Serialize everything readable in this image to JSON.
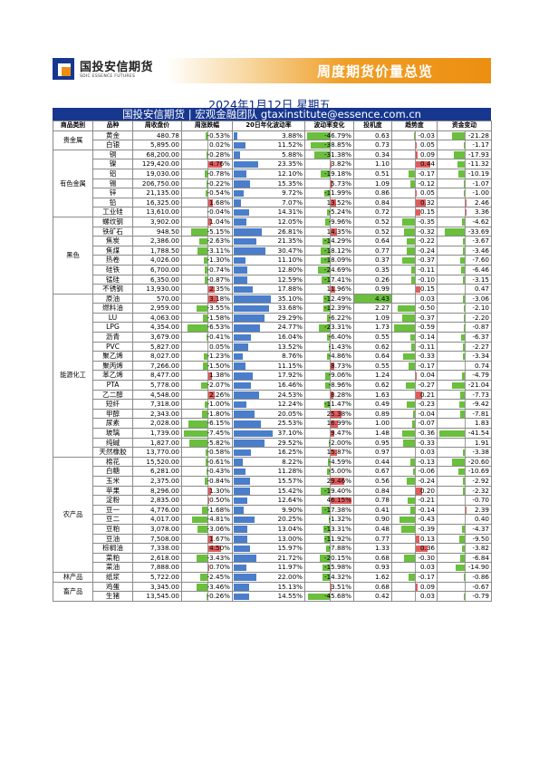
{
  "logo": {
    "cn": "国投安信期货",
    "en": "SDIC ESSENCE FUTURES"
  },
  "header": {
    "title": "周度期货价量总览",
    "date": "2024年1月12日 星期五",
    "banner": "国投安信期货 | 宏观金融团队 gtaxinstitute@essence.com.cn"
  },
  "colors": {
    "navy": "#17378f",
    "orange": "#ec8f10",
    "pos": "#e05d5d",
    "neg": "#6abf3d",
    "vol": "#4a7ecb"
  },
  "columns": [
    "商品类别",
    "品种",
    "周收盘价",
    "周涨跌幅",
    "20日年化波动率",
    "波动率变化",
    "投机度",
    "趋势度",
    "资金变动"
  ],
  "groups": [
    {
      "category": "贵金属",
      "rows": [
        [
          "黄金",
          "480.78",
          "-0.53%",
          "3.88%",
          "-46.79%",
          "0.63",
          "-0.03",
          "-21.28"
        ],
        [
          "白银",
          "5,895.00",
          "0.02%",
          "11.52%",
          "-38.85%",
          "0.73",
          "0.05",
          "-1.17"
        ]
      ]
    },
    {
      "category": "有色金属",
      "rows": [
        [
          "铜",
          "68,200.00",
          "-0.28%",
          "5.88%",
          "-31.38%",
          "0.34",
          "0.09",
          "-17.93"
        ],
        [
          "镍",
          "129,420.00",
          "4.76%",
          "23.35%",
          "3.82%",
          "1.10",
          "0.44",
          "-11.32"
        ],
        [
          "铝",
          "19,030.00",
          "-0.78%",
          "12.10%",
          "-19.18%",
          "0.51",
          "-0.17",
          "-10.19"
        ],
        [
          "锡",
          "206,750.00",
          "-0.22%",
          "15.35%",
          "5.73%",
          "1.09",
          "-0.12",
          "-1.07"
        ],
        [
          "锌",
          "21,135.00",
          "-0.54%",
          "9.72%",
          "-11.99%",
          "0.86",
          "0.05",
          "-1.00"
        ],
        [
          "铅",
          "16,325.00",
          "1.68%",
          "7.07%",
          "13.52%",
          "0.84",
          "0.32",
          "2.46"
        ],
        [
          "工业硅",
          "13,610.00",
          "-0.04%",
          "14.31%",
          "-5.24%",
          "0.72",
          "0.15",
          "3.36"
        ]
      ]
    },
    {
      "category": "黑色",
      "rows": [
        [
          "螺纹钢",
          "3,902.00",
          "1.04%",
          "12.05%",
          "-9.96%",
          "0.52",
          "-0.35",
          "-4.62"
        ],
        [
          "铁矿石",
          "948.50",
          "-5.15%",
          "26.81%",
          "14.35%",
          "0.52",
          "-0.32",
          "-33.69"
        ],
        [
          "焦炭",
          "2,386.00",
          "-2.63%",
          "21.35%",
          "-14.29%",
          "0.64",
          "-0.22",
          "-3.67"
        ],
        [
          "焦煤",
          "1,788.50",
          "-3.11%",
          "30.47%",
          "-18.12%",
          "0.77",
          "-0.24",
          "-3.46"
        ],
        [
          "热卷",
          "4,026.00",
          "-1.30%",
          "11.10%",
          "-18.09%",
          "0.37",
          "-0.37",
          "-7.60"
        ],
        [
          "硅铁",
          "6,700.00",
          "-0.74%",
          "12.80%",
          "-24.69%",
          "0.35",
          "-0.11",
          "-6.46"
        ],
        [
          "锰硅",
          "6,350.00",
          "-0.87%",
          "12.59%",
          "-17.41%",
          "0.26",
          "-0.10",
          "-3.15"
        ],
        [
          "不锈钢",
          "13,930.00",
          "2.35%",
          "17.88%",
          "11.96%",
          "0.99",
          "0.15",
          "0.47"
        ]
      ]
    },
    {
      "category": "能源化工",
      "rows": [
        [
          "原油",
          "570.00",
          "3.18%",
          "35.10%",
          "-12.49%",
          "4.43",
          "0.03",
          "-3.06"
        ],
        [
          "燃料油",
          "2,959.00",
          "-3.55%",
          "33.68%",
          "-12.39%",
          "2.27",
          "-0.50",
          "-2.10"
        ],
        [
          "LU",
          "4,063.00",
          "-1.58%",
          "29.29%",
          "-6.22%",
          "1.09",
          "-0.37",
          "-2.20"
        ],
        [
          "LPG",
          "4,354.00",
          "-6.53%",
          "24.77%",
          "-23.31%",
          "1.73",
          "-0.59",
          "-0.87"
        ],
        [
          "沥青",
          "3,679.00",
          "-0.41%",
          "16.04%",
          "-6.40%",
          "0.55",
          "-0.14",
          "-6.37"
        ],
        [
          "PVC",
          "5,827.00",
          "0.05%",
          "13.52%",
          "-1.43%",
          "0.62",
          "-0.11",
          "-2.27"
        ],
        [
          "聚乙烯",
          "8,027.00",
          "-1.23%",
          "8.76%",
          "-4.86%",
          "0.64",
          "-0.33",
          "-3.34"
        ],
        [
          "聚丙烯",
          "7,266.00",
          "-1.50%",
          "11.15%",
          "8.73%",
          "0.55",
          "-0.17",
          "0.74"
        ],
        [
          "苯乙烯",
          "8,477.00",
          "1.38%",
          "17.92%",
          "-9.06%",
          "1.24",
          "0.04",
          "-4.79"
        ],
        [
          "PTA",
          "5,778.00",
          "-2.07%",
          "16.46%",
          "-8.96%",
          "0.62",
          "-0.27",
          "-21.04"
        ],
        [
          "乙二醇",
          "4,548.00",
          "2.26%",
          "24.53%",
          "8.28%",
          "1.63",
          "0.21",
          "-7.73"
        ],
        [
          "短纤",
          "7,318.00",
          "-1.00%",
          "12.24%",
          "-11.47%",
          "0.49",
          "-0.23",
          "-9.42"
        ],
        [
          "甲醇",
          "2,343.00",
          "-1.80%",
          "20.05%",
          "25.38%",
          "0.89",
          "-0.04",
          "-7.81"
        ],
        [
          "尿素",
          "2,028.00",
          "-6.15%",
          "25.53%",
          "16.99%",
          "1.00",
          "-0.07",
          "1.83"
        ],
        [
          "玻璃",
          "1,739.00",
          "-7.45%",
          "37.10%",
          "9.47%",
          "1.48",
          "-0.36",
          "-41.54"
        ],
        [
          "纯碱",
          "1,827.00",
          "-5.82%",
          "29.52%",
          "-2.00%",
          "0.95",
          "-0.33",
          "1.91"
        ],
        [
          "天然橡胶",
          "13,770.00",
          "-0.58%",
          "16.25%",
          "15.87%",
          "0.97",
          "0.03",
          "-3.38"
        ]
      ]
    },
    {
      "category": "农产品",
      "rows": [
        [
          "棉花",
          "15,520.00",
          "-0.61%",
          "8.22%",
          "-4.59%",
          "0.44",
          "-0.13",
          "-20.60"
        ],
        [
          "白糖",
          "6,281.00",
          "-0.43%",
          "11.28%",
          "-5.00%",
          "0.67",
          "-0.06",
          "-10.69"
        ],
        [
          "玉米",
          "2,375.00",
          "-0.84%",
          "15.57%",
          "29.46%",
          "0.56",
          "-0.24",
          "-2.92"
        ],
        [
          "苹果",
          "8,296.00",
          "1.30%",
          "15.42%",
          "-19.40%",
          "0.84",
          "0.20",
          "-2.32"
        ],
        [
          "淀粉",
          "2,835.00",
          "0.50%",
          "12.64%",
          "46.15%",
          "0.78",
          "-0.21",
          "-0.70"
        ],
        [
          "豆一",
          "4,776.00",
          "-1.68%",
          "9.90%",
          "-17.38%",
          "0.41",
          "-0.14",
          "2.39"
        ],
        [
          "豆二",
          "4,017.00",
          "-4.81%",
          "20.25%",
          "-1.32%",
          "0.90",
          "-0.43",
          "0.40"
        ],
        [
          "豆粕",
          "3,078.00",
          "-3.06%",
          "13.04%",
          "-13.31%",
          "0.48",
          "-0.39",
          "-4.37"
        ],
        [
          "豆油",
          "7,508.00",
          "1.67%",
          "13.00%",
          "-11.92%",
          "0.77",
          "0.13",
          "-9.50"
        ],
        [
          "棕榈油",
          "7,338.00",
          "4.50%",
          "15.97%",
          "-7.88%",
          "1.33",
          "0.36",
          "-3.82"
        ],
        [
          "菜粕",
          "2,618.00",
          "-3.43%",
          "21.72%",
          "-20.15%",
          "0.68",
          "-0.30",
          "-6.84"
        ],
        [
          "菜油",
          "7,888.00",
          "0.70%",
          "11.97%",
          "-15.98%",
          "0.93",
          "0.03",
          "-14.90"
        ]
      ]
    },
    {
      "category": "林产品",
      "rows": [
        [
          "纸浆",
          "5,722.00",
          "-2.45%",
          "22.00%",
          "-14.32%",
          "1.62",
          "-0.17",
          "-0.86"
        ]
      ]
    },
    {
      "category": "畜产品",
      "rows": [
        [
          "鸡蛋",
          "3,345.00",
          "-3.46%",
          "15.13%",
          "3.51%",
          "0.68",
          "0.09",
          "-0.67"
        ],
        [
          "生猪",
          "13,545.00",
          "-0.26%",
          "14.55%",
          "-45.68%",
          "0.42",
          "0.03",
          "-0.79"
        ]
      ]
    }
  ],
  "scales": {
    "chg_max": 7.45,
    "vol_max": 37.1,
    "volchg_max": 46.79,
    "trend_max": 0.59,
    "fund_max": 41.54
  }
}
